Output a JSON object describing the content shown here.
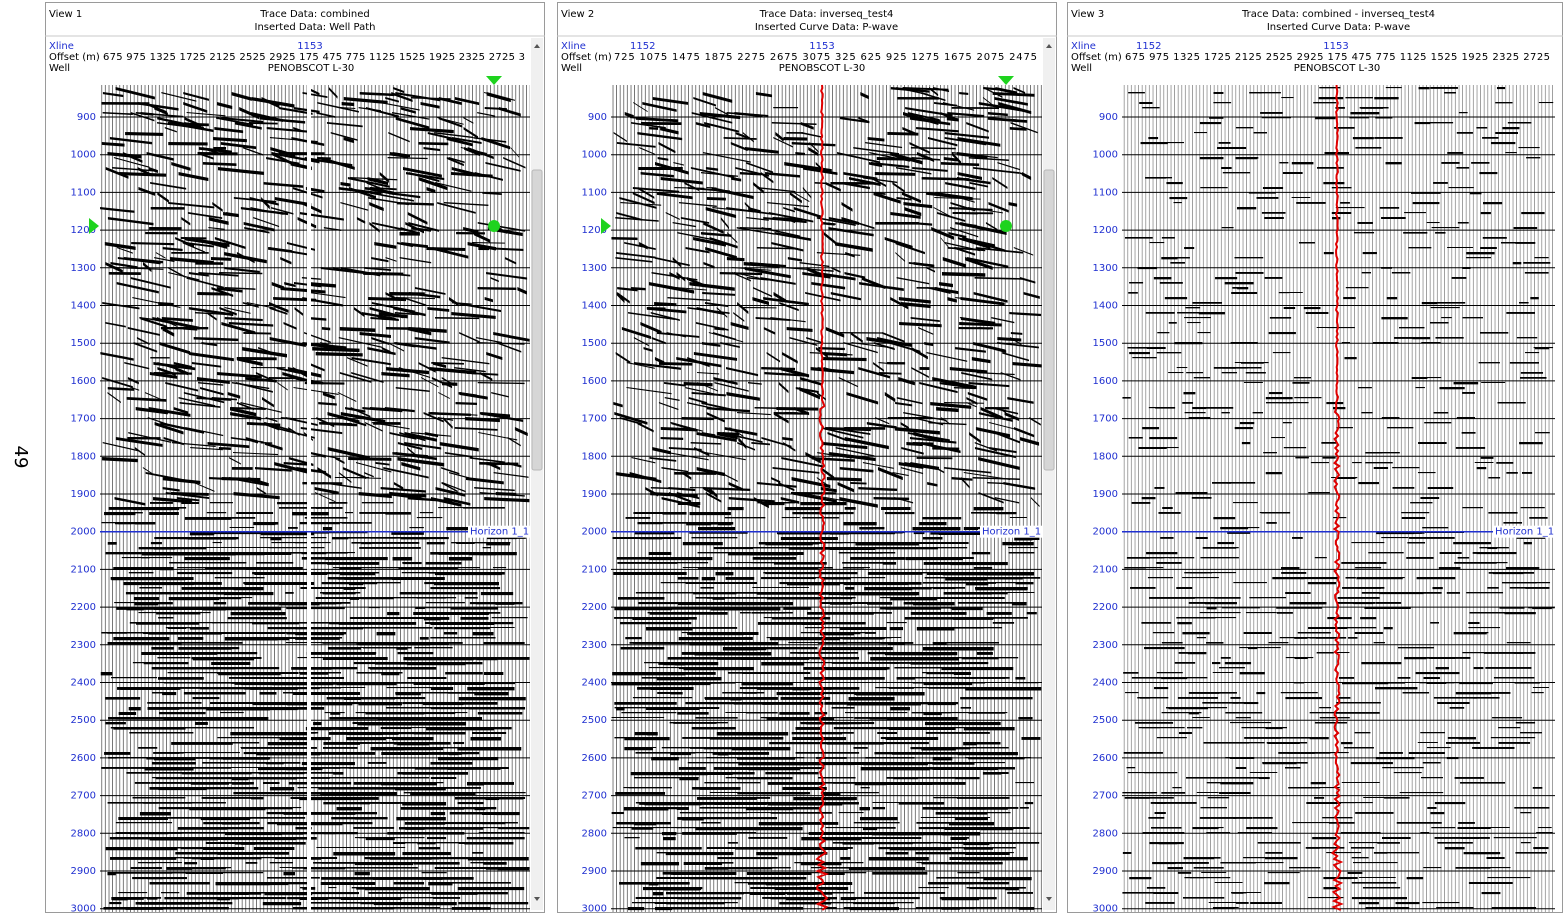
{
  "side_label": "49",
  "views": [
    {
      "name": "View 1",
      "trace_data": "Trace Data: combined",
      "inserted_data": "Inserted Data: Well Path",
      "row_labels": [
        "Xline",
        "Offset (m)",
        "Well"
      ],
      "xlines": [
        "1153"
      ],
      "offsets": "675 975 1325 1725 2125 2525 2925 175 475 775 1125 1525 1925 2325 2725 3",
      "well": "PENOBSCOT L-30",
      "times": [
        900,
        1000,
        1100,
        1200,
        1300,
        1400,
        1500,
        1600,
        1700,
        1800,
        1900,
        2000,
        2100,
        2200,
        2300,
        2400,
        2500,
        2600,
        2700,
        2800,
        2900,
        3000
      ],
      "horizon": "Horizon 1_1"
    },
    {
      "name": "View 2",
      "trace_data": "Trace Data: inverseq_test4",
      "inserted_data": "Inserted Curve Data: P-wave",
      "row_labels": [
        "Xline",
        "Offset (m)",
        "Well"
      ],
      "xlines": [
        "1152",
        "1153"
      ],
      "offsets": "725 1075 1475 1875 2275 2675 3075 325 625 925 1275 1675 2075 2475",
      "well": "PENOBSCOT L-30",
      "times": [
        900,
        1000,
        1100,
        1200,
        1300,
        1400,
        1500,
        1600,
        1700,
        1800,
        1900,
        2000,
        2100,
        2200,
        2300,
        2400,
        2500,
        2600,
        2700,
        2800,
        2900,
        3000
      ],
      "horizon": "Horizon 1_1"
    },
    {
      "name": "View 3",
      "trace_data": "Trace Data: combined - inverseq_test4",
      "inserted_data": "Inserted Curve Data: P-wave",
      "row_labels": [
        "Xline",
        "Offset (m)",
        "Well"
      ],
      "xlines": [
        "1152",
        "1153"
      ],
      "offsets": "675 975 1325 1725 2125 2525 2925 175 475 775 1125 1525 1925 2325 2725",
      "well": "PENOBSCOT L-30",
      "times": [
        900,
        1000,
        1100,
        1200,
        1300,
        1400,
        1500,
        1600,
        1700,
        1800,
        1900,
        2000,
        2100,
        2200,
        2300,
        2400,
        2500,
        2600,
        2700,
        2800,
        2900,
        3000
      ],
      "horizon": "Horizon 1_1"
    }
  ]
}
